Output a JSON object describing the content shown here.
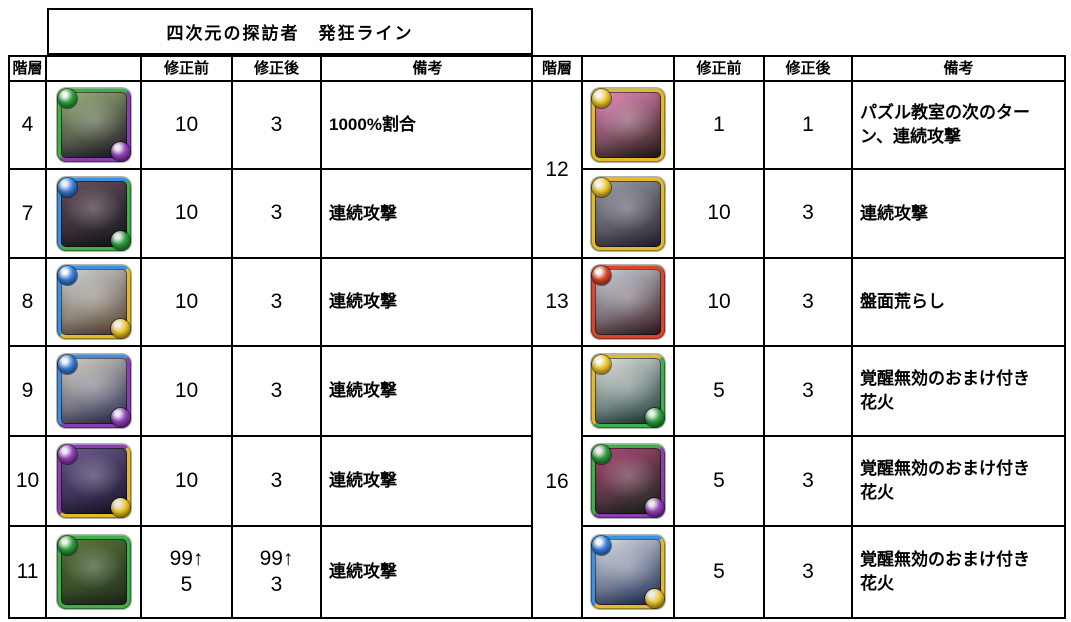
{
  "title": "四次元の探訪者　発狂ライン",
  "headers": {
    "floor": "階層",
    "monster": "",
    "before": "修正前",
    "after": "修正後",
    "notes": "備考"
  },
  "elements": {
    "wood": {
      "frame": "#3faf4c",
      "orb": "#2fa23e",
      "dark": "#156b22"
    },
    "water": {
      "frame": "#3e8fdf",
      "orb": "#3b82dd",
      "dark": "#174d9e"
    },
    "light": {
      "frame": "#e3bb2a",
      "orb": "#eecb2f",
      "dark": "#a9820e"
    },
    "fire": {
      "frame": "#da452b",
      "orb": "#e0492a",
      "dark": "#8f1f0e"
    },
    "dark": {
      "frame": "#8a3fb0",
      "orb": "#9544bc",
      "dark": "#571f7e"
    }
  },
  "tables": {
    "left": {
      "rows": [
        {
          "floor": "4",
          "before": "10",
          "after": "3",
          "notes": "1000%割合",
          "icon": {
            "name": "monster-icon",
            "frame": [
              "wood",
              "dark"
            ],
            "orbs": [
              "wood",
              "dark"
            ],
            "art": [
              "#9db87e",
              "#1d1524"
            ]
          }
        },
        {
          "floor": "7",
          "before": "10",
          "after": "3",
          "notes": "連続攻撃",
          "icon": {
            "name": "monster-icon",
            "frame": [
              "water",
              "wood"
            ],
            "orbs": [
              "water",
              "wood"
            ],
            "art": [
              "#6d5360",
              "#10141a"
            ]
          }
        },
        {
          "floor": "8",
          "before": "10",
          "after": "3",
          "notes": "連続攻撃",
          "icon": {
            "name": "monster-icon",
            "frame": [
              "water",
              "light"
            ],
            "orbs": [
              "water",
              "light"
            ],
            "art": [
              "#cfd4d8",
              "#5b4630"
            ]
          }
        },
        {
          "floor": "9",
          "before": "10",
          "after": "3",
          "notes": "連続攻撃",
          "icon": {
            "name": "monster-icon",
            "frame": [
              "water",
              "dark"
            ],
            "orbs": [
              "water",
              "dark"
            ],
            "art": [
              "#d8d4c8",
              "#2a2e52"
            ]
          }
        },
        {
          "floor": "10",
          "before": "10",
          "after": "3",
          "notes": "連続攻撃",
          "icon": {
            "name": "monster-icon",
            "frame": [
              "dark",
              "light"
            ],
            "orbs": [
              "dark",
              "light"
            ],
            "art": [
              "#6f5e92",
              "#16122a"
            ]
          }
        },
        {
          "floor": "11",
          "before": "99↑\n5",
          "after": "99↑\n3",
          "notes": "連続攻撃",
          "icon": {
            "name": "monster-icon",
            "frame": [
              "wood"
            ],
            "orbs": [
              "wood"
            ],
            "art": [
              "#5d7a3f",
              "#202c1a"
            ]
          }
        }
      ]
    },
    "right": {
      "rows": [
        {
          "floor": "12",
          "floor_span": 2,
          "before": "1",
          "after": "1",
          "notes": "パズル教室の次のターン、連続攻撃",
          "icon": {
            "name": "monster-icon",
            "frame": [
              "light"
            ],
            "orbs": [
              "light"
            ],
            "art": [
              "#ef8fc4",
              "#241c12"
            ]
          }
        },
        {
          "before": "10",
          "after": "3",
          "notes": "連続攻撃",
          "icon": {
            "name": "monster-icon",
            "frame": [
              "light"
            ],
            "orbs": [
              "light"
            ],
            "art": [
              "#9aa0a8",
              "#2a2430"
            ]
          }
        },
        {
          "floor": "13",
          "before": "10",
          "after": "3",
          "notes": "盤面荒らし",
          "icon": {
            "name": "monster-icon",
            "frame": [
              "fire"
            ],
            "orbs": [
              "fire"
            ],
            "art": [
              "#cdd6de",
              "#3a1a22"
            ]
          }
        },
        {
          "floor": "16",
          "floor_span": 3,
          "before": "5",
          "after": "3",
          "notes": "覚醒無効のおまけ付き花火",
          "icon": {
            "name": "monster-icon",
            "frame": [
              "light",
              "wood"
            ],
            "orbs": [
              "light",
              "wood"
            ],
            "art": [
              "#e8e8e4",
              "#173a38"
            ]
          }
        },
        {
          "before": "5",
          "after": "3",
          "notes": "覚醒無効のおまけ付き花火",
          "icon": {
            "name": "monster-icon",
            "frame": [
              "wood",
              "dark"
            ],
            "orbs": [
              "wood",
              "dark"
            ],
            "art": [
              "#b04a78",
              "#14281a"
            ]
          }
        },
        {
          "before": "5",
          "after": "3",
          "notes": "覚醒無効のおまけ付き花火",
          "icon": {
            "name": "monster-icon",
            "frame": [
              "water",
              "light"
            ],
            "orbs": [
              "water",
              "light"
            ],
            "art": [
              "#dfe3e8",
              "#1a2a52"
            ]
          }
        }
      ]
    }
  }
}
